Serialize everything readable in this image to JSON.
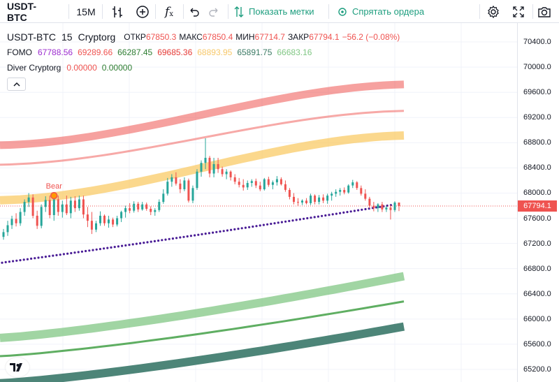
{
  "toolbar": {
    "symbol": "USDT-BTC",
    "interval": "15M",
    "show_marks": "Показать метки",
    "hide_orders": "Спрятать ордера"
  },
  "legend": {
    "symbol": "USDT-BTC",
    "interval": "15",
    "exchange": "Cryptorg",
    "ohlc": [
      {
        "k": "ОТКР",
        "v": "67850.3"
      },
      {
        "k": "МАКС",
        "v": "67850.4"
      },
      {
        "k": "МИН",
        "v": "67714.7"
      },
      {
        "k": "ЗАКР",
        "v": "67794.1"
      }
    ],
    "change": "−56.2 (−0.08%)",
    "fomo_name": "FOMO",
    "fomo_values": [
      {
        "v": "67788.56",
        "color": "#9c2ccf"
      },
      {
        "v": "69289.66",
        "color": "#ef5350"
      },
      {
        "v": "66287.45",
        "color": "#2e7d32"
      },
      {
        "v": "69685.36",
        "color": "#e53935"
      },
      {
        "v": "68893.95",
        "color": "#f7c86a"
      },
      {
        "v": "65891.75",
        "color": "#3b7a64"
      },
      {
        "v": "66683.16",
        "color": "#81c784"
      }
    ],
    "diver_name": "Diver Cryptorg",
    "diver_values": [
      {
        "v": "0.00000",
        "color": "#ef5350"
      },
      {
        "v": "0.00000",
        "color": "#2e7d32"
      }
    ]
  },
  "icons": {
    "bars": "bars-style-icon",
    "add": "compare-add-icon",
    "fx": "indicators-icon",
    "undo": "undo-icon",
    "redo": "redo-icon",
    "marks": "show-marks-icon",
    "orders": "hide-orders-icon",
    "settings": "gear-icon",
    "fullscreen": "fullscreen-icon",
    "screenshot": "camera-icon",
    "collapse": "chevron-up-icon",
    "logo": "tradingview-logo"
  },
  "chart_data": {
    "type": "candlestick",
    "symbol": "USDT-BTC",
    "interval": "15",
    "y_ticks": [
      70400,
      70000,
      69600,
      69200,
      68800,
      68400,
      68000,
      67600,
      67200,
      66800,
      66400,
      66000,
      65600,
      65200
    ],
    "ylim": [
      65000,
      70700
    ],
    "last_price": 67794.1,
    "last_price_label": "67794.1",
    "marker": {
      "label": "Bear",
      "bar_index": 12,
      "price": 67960
    },
    "colors": {
      "up": "#26a69a",
      "down": "#ef5350",
      "grid": "#f0f3fa",
      "dots": "#4a1d96"
    },
    "bands": [
      {
        "name": "upper-outer",
        "color": "#ef5350",
        "opacity": 0.55,
        "width": 11,
        "start": 68760,
        "end": 69725,
        "curve": "s"
      },
      {
        "name": "upper-inner",
        "color": "#ef5350",
        "opacity": 0.5,
        "width": 3,
        "start": 68450,
        "end": 69305,
        "curve": "s"
      },
      {
        "name": "mid-band",
        "color": "#f9c85c",
        "opacity": 0.7,
        "width": 12,
        "start": 67885,
        "end": 68915,
        "curve": "s"
      },
      {
        "name": "lower-inner-light",
        "color": "#81c784",
        "opacity": 0.75,
        "width": 12,
        "start": 65700,
        "end": 66680,
        "curve": "u"
      },
      {
        "name": "lower-inner",
        "color": "#43a047",
        "opacity": 0.85,
        "width": 3,
        "start": 65410,
        "end": 66280,
        "curve": "u"
      },
      {
        "name": "lower-outer",
        "color": "#2e7060",
        "opacity": 0.85,
        "width": 12,
        "start": 64980,
        "end": 65880,
        "curve": "u"
      }
    ],
    "dotted_line": {
      "start": 66890,
      "end": 67810
    },
    "candles": [
      {
        "o": 67305,
        "h": 67430,
        "l": 67260,
        "c": 67380
      },
      {
        "o": 67380,
        "h": 67560,
        "l": 67320,
        "c": 67490
      },
      {
        "o": 67490,
        "h": 67640,
        "l": 67430,
        "c": 67590
      },
      {
        "o": 67590,
        "h": 67680,
        "l": 67470,
        "c": 67520
      },
      {
        "o": 67520,
        "h": 67760,
        "l": 67480,
        "c": 67700
      },
      {
        "o": 67700,
        "h": 67900,
        "l": 67640,
        "c": 67860
      },
      {
        "o": 67860,
        "h": 68000,
        "l": 67780,
        "c": 67930
      },
      {
        "o": 67930,
        "h": 67980,
        "l": 67600,
        "c": 67640
      },
      {
        "o": 67640,
        "h": 67720,
        "l": 67430,
        "c": 67480
      },
      {
        "o": 67480,
        "h": 67820,
        "l": 67440,
        "c": 67780
      },
      {
        "o": 67780,
        "h": 67950,
        "l": 67700,
        "c": 67890
      },
      {
        "o": 67890,
        "h": 67960,
        "l": 67600,
        "c": 67650
      },
      {
        "o": 67650,
        "h": 67980,
        "l": 67560,
        "c": 67900
      },
      {
        "o": 67900,
        "h": 67960,
        "l": 67640,
        "c": 67700
      },
      {
        "o": 67700,
        "h": 67880,
        "l": 67610,
        "c": 67820
      },
      {
        "o": 67820,
        "h": 67960,
        "l": 67650,
        "c": 67680
      },
      {
        "o": 67680,
        "h": 67940,
        "l": 67600,
        "c": 67880
      },
      {
        "o": 67880,
        "h": 67950,
        "l": 67700,
        "c": 67760
      },
      {
        "o": 67760,
        "h": 67960,
        "l": 67720,
        "c": 67900
      },
      {
        "o": 67900,
        "h": 67960,
        "l": 67600,
        "c": 67660
      },
      {
        "o": 67660,
        "h": 67780,
        "l": 67460,
        "c": 67560
      },
      {
        "o": 67560,
        "h": 67700,
        "l": 67350,
        "c": 67420
      },
      {
        "o": 67420,
        "h": 67560,
        "l": 67380,
        "c": 67520
      },
      {
        "o": 67520,
        "h": 67710,
        "l": 67480,
        "c": 67640
      },
      {
        "o": 67640,
        "h": 67660,
        "l": 67480,
        "c": 67520
      },
      {
        "o": 67520,
        "h": 67640,
        "l": 67450,
        "c": 67580
      },
      {
        "o": 67580,
        "h": 67610,
        "l": 67460,
        "c": 67500
      },
      {
        "o": 67500,
        "h": 67640,
        "l": 67470,
        "c": 67600
      },
      {
        "o": 67600,
        "h": 67720,
        "l": 67540,
        "c": 67700
      },
      {
        "o": 67700,
        "h": 67800,
        "l": 67610,
        "c": 67760
      },
      {
        "o": 67760,
        "h": 67840,
        "l": 67680,
        "c": 67720
      },
      {
        "o": 67720,
        "h": 67870,
        "l": 67690,
        "c": 67830
      },
      {
        "o": 67830,
        "h": 67860,
        "l": 67700,
        "c": 67740
      },
      {
        "o": 67740,
        "h": 67860,
        "l": 67720,
        "c": 67820
      },
      {
        "o": 67820,
        "h": 67850,
        "l": 67720,
        "c": 67750
      },
      {
        "o": 67750,
        "h": 67790,
        "l": 67650,
        "c": 67700
      },
      {
        "o": 67700,
        "h": 67760,
        "l": 67640,
        "c": 67730
      },
      {
        "o": 67730,
        "h": 67900,
        "l": 67700,
        "c": 67860
      },
      {
        "o": 67860,
        "h": 68060,
        "l": 67830,
        "c": 67990
      },
      {
        "o": 67990,
        "h": 68240,
        "l": 67960,
        "c": 68180
      },
      {
        "o": 68180,
        "h": 68300,
        "l": 68100,
        "c": 68250
      },
      {
        "o": 68250,
        "h": 68330,
        "l": 68120,
        "c": 68150
      },
      {
        "o": 68150,
        "h": 68220,
        "l": 68000,
        "c": 68060
      },
      {
        "o": 68060,
        "h": 68250,
        "l": 68030,
        "c": 68200
      },
      {
        "o": 68200,
        "h": 68230,
        "l": 67850,
        "c": 67880
      },
      {
        "o": 67880,
        "h": 68120,
        "l": 67840,
        "c": 68080
      },
      {
        "o": 68080,
        "h": 68380,
        "l": 68050,
        "c": 68340
      },
      {
        "o": 68340,
        "h": 68520,
        "l": 68260,
        "c": 68480
      },
      {
        "o": 68480,
        "h": 68870,
        "l": 68380,
        "c": 68560
      },
      {
        "o": 68560,
        "h": 68590,
        "l": 68250,
        "c": 68310
      },
      {
        "o": 68310,
        "h": 68560,
        "l": 68250,
        "c": 68460
      },
      {
        "o": 68460,
        "h": 68560,
        "l": 68320,
        "c": 68380
      },
      {
        "o": 68380,
        "h": 68420,
        "l": 68260,
        "c": 68300
      },
      {
        "o": 68300,
        "h": 68380,
        "l": 68220,
        "c": 68340
      },
      {
        "o": 68340,
        "h": 68360,
        "l": 68200,
        "c": 68250
      },
      {
        "o": 68250,
        "h": 68300,
        "l": 68140,
        "c": 68180
      },
      {
        "o": 68180,
        "h": 68240,
        "l": 68090,
        "c": 68130
      },
      {
        "o": 68130,
        "h": 68220,
        "l": 68040,
        "c": 68090
      },
      {
        "o": 68090,
        "h": 68200,
        "l": 68050,
        "c": 68160
      },
      {
        "o": 68160,
        "h": 68220,
        "l": 68100,
        "c": 68190
      },
      {
        "o": 68190,
        "h": 68230,
        "l": 68080,
        "c": 68120
      },
      {
        "o": 68120,
        "h": 68180,
        "l": 68030,
        "c": 68060
      },
      {
        "o": 68060,
        "h": 68240,
        "l": 68040,
        "c": 68220
      },
      {
        "o": 68220,
        "h": 68260,
        "l": 68100,
        "c": 68130
      },
      {
        "o": 68130,
        "h": 68200,
        "l": 68060,
        "c": 68170
      },
      {
        "o": 68170,
        "h": 68270,
        "l": 68120,
        "c": 68220
      },
      {
        "o": 68220,
        "h": 68250,
        "l": 68120,
        "c": 68140
      },
      {
        "o": 68140,
        "h": 68200,
        "l": 68020,
        "c": 68050
      },
      {
        "o": 68050,
        "h": 68080,
        "l": 67900,
        "c": 67940
      },
      {
        "o": 67940,
        "h": 68000,
        "l": 67820,
        "c": 67860
      },
      {
        "o": 67860,
        "h": 67920,
        "l": 67800,
        "c": 67850
      },
      {
        "o": 67850,
        "h": 67900,
        "l": 67810,
        "c": 67880
      },
      {
        "o": 67880,
        "h": 67920,
        "l": 67820,
        "c": 67840
      },
      {
        "o": 67840,
        "h": 67990,
        "l": 67810,
        "c": 67960
      },
      {
        "o": 67960,
        "h": 67980,
        "l": 67820,
        "c": 67860
      },
      {
        "o": 67860,
        "h": 67970,
        "l": 67820,
        "c": 67930
      },
      {
        "o": 67930,
        "h": 67980,
        "l": 67840,
        "c": 67880
      },
      {
        "o": 67880,
        "h": 67990,
        "l": 67830,
        "c": 67960
      },
      {
        "o": 67960,
        "h": 68020,
        "l": 67880,
        "c": 67990
      },
      {
        "o": 67990,
        "h": 68060,
        "l": 67940,
        "c": 68020
      },
      {
        "o": 68020,
        "h": 68080,
        "l": 67960,
        "c": 68050
      },
      {
        "o": 68050,
        "h": 68090,
        "l": 67980,
        "c": 68010
      },
      {
        "o": 68010,
        "h": 68140,
        "l": 67990,
        "c": 68120
      },
      {
        "o": 68120,
        "h": 68210,
        "l": 68080,
        "c": 68170
      },
      {
        "o": 68170,
        "h": 68190,
        "l": 68050,
        "c": 68080
      },
      {
        "o": 68080,
        "h": 68120,
        "l": 67960,
        "c": 67990
      },
      {
        "o": 67990,
        "h": 68060,
        "l": 67880,
        "c": 67910
      },
      {
        "o": 67910,
        "h": 67940,
        "l": 67760,
        "c": 67800
      },
      {
        "o": 67800,
        "h": 67860,
        "l": 67710,
        "c": 67760
      },
      {
        "o": 67760,
        "h": 67840,
        "l": 67700,
        "c": 67820
      },
      {
        "o": 67820,
        "h": 67860,
        "l": 67700,
        "c": 67740
      },
      {
        "o": 67740,
        "h": 67800,
        "l": 67700,
        "c": 67770
      },
      {
        "o": 67770,
        "h": 67810,
        "l": 67580,
        "c": 67730
      },
      {
        "o": 67730,
        "h": 67870,
        "l": 67700,
        "c": 67850
      },
      {
        "o": 67850.3,
        "h": 67850.4,
        "l": 67714.7,
        "c": 67794.1
      }
    ]
  }
}
